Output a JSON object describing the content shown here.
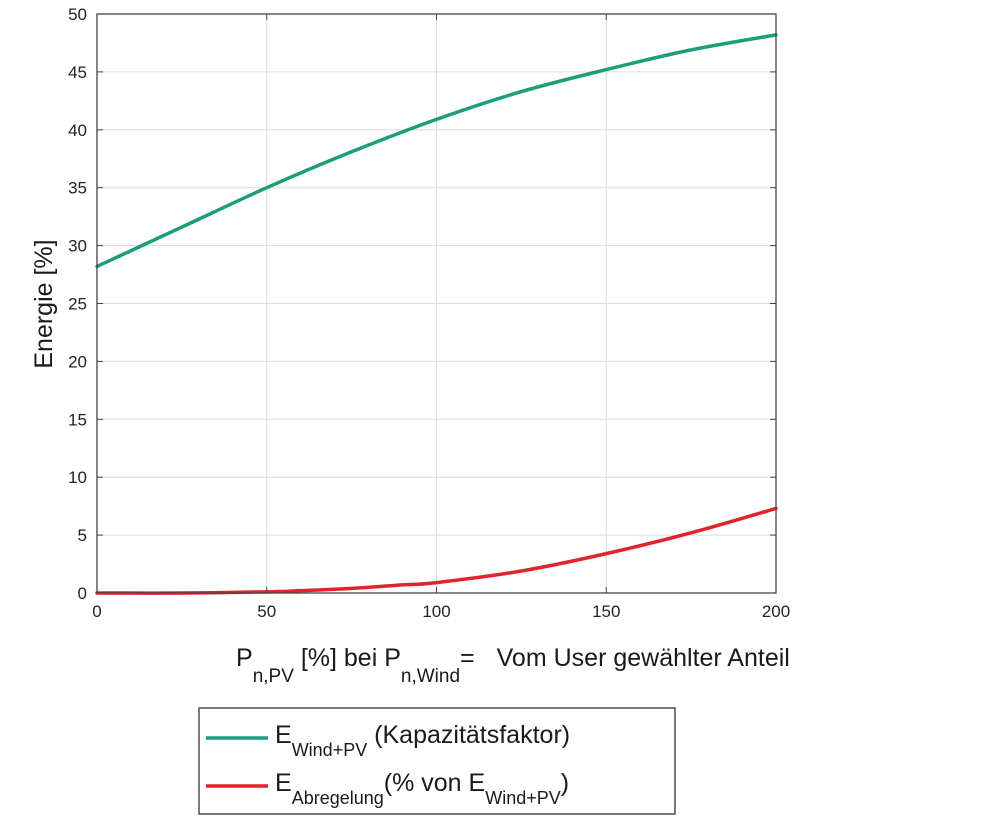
{
  "chart_data": {
    "type": "line",
    "xlabel": {
      "base": "P",
      "base_sub": "n,PV",
      "mid": " [%] bei P",
      "mid_sub": "n,Wind",
      "eq": "=",
      "tail": "Vom User gewählter Anteil"
    },
    "ylabel": "Energie [%]",
    "xlim": [
      0,
      200
    ],
    "ylim": [
      0,
      50
    ],
    "xticks": [
      0,
      50,
      100,
      150,
      200
    ],
    "yticks": [
      0,
      5,
      10,
      15,
      20,
      25,
      30,
      35,
      40,
      45,
      50
    ],
    "grid": true,
    "legend_position": "bottom-outside",
    "series": [
      {
        "key": "wind_pv",
        "color": "#1b9e7a",
        "legend": {
          "base": "E",
          "sub": "Wind+PV",
          "text": " (Kapazitätsfaktor)"
        },
        "x": [
          0,
          25,
          50,
          75,
          100,
          125,
          150,
          175,
          200
        ],
        "y": [
          28.2,
          31.6,
          35.0,
          38.1,
          40.9,
          43.3,
          45.2,
          46.9,
          48.2
        ]
      },
      {
        "key": "abregelung",
        "color": "#e3222b",
        "legend": {
          "base": "E",
          "sub": "Abregelung",
          "text": "(% von E",
          "sub2": "Wind+PV",
          "close": ")"
        },
        "x": [
          0,
          25,
          50,
          60,
          75,
          90,
          100,
          125,
          150,
          175,
          200
        ],
        "y": [
          0.0,
          0.0,
          0.1,
          0.2,
          0.4,
          0.7,
          0.9,
          1.9,
          3.4,
          5.2,
          7.3
        ]
      }
    ]
  }
}
